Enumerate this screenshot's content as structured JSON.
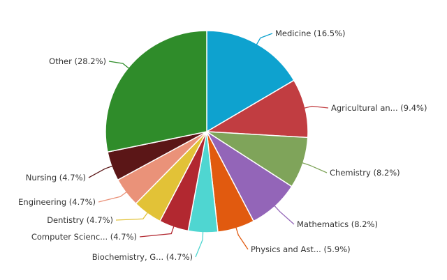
{
  "chart_data": {
    "type": "pie",
    "start_angle_deg": 0,
    "direction": "clockwise",
    "slices": [
      {
        "label": "Medicine",
        "display_label": "Medicine (16.5%)",
        "value": 16.5,
        "color": "#0ea2cf"
      },
      {
        "label": "Agricultural an...",
        "display_label": "Agricultural an... (9.4%)",
        "value": 9.4,
        "color": "#c13d41"
      },
      {
        "label": "Chemistry",
        "display_label": "Chemistry (8.2%)",
        "value": 8.2,
        "color": "#7fa45a"
      },
      {
        "label": "Mathematics",
        "display_label": "Mathematics (8.2%)",
        "value": 8.2,
        "color": "#9365b8"
      },
      {
        "label": "Physics and Ast...",
        "display_label": "Physics and Ast... (5.9%)",
        "value": 5.9,
        "color": "#e15a0f"
      },
      {
        "label": "Biochemistry, G...",
        "display_label": "Biochemistry, G... (4.7%)",
        "value": 4.7,
        "color": "#4fd6d1"
      },
      {
        "label": "Computer Scienc...",
        "display_label": "Computer Scienc... (4.7%)",
        "value": 4.7,
        "color": "#b22830"
      },
      {
        "label": "Dentistry",
        "display_label": "Dentistry (4.7%)",
        "value": 4.7,
        "color": "#e2c237"
      },
      {
        "label": "Engineering",
        "display_label": "Engineering (4.7%)",
        "value": 4.7,
        "color": "#ea9279"
      },
      {
        "label": "Nursing",
        "display_label": "Nursing (4.7%)",
        "value": 4.7,
        "color": "#5b1617"
      },
      {
        "label": "Other",
        "display_label": "Other (28.2%)",
        "value": 28.2,
        "color": "#2f8c2a"
      }
    ]
  }
}
